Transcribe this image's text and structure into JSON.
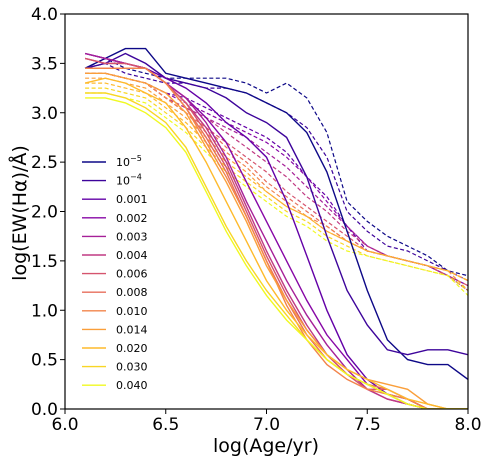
{
  "chart_data": {
    "type": "line",
    "xlabel": "log(Age/yr)",
    "ylabel": "log(EW(Hα)/Å)",
    "xlim": [
      6.0,
      8.0
    ],
    "ylim": [
      0.0,
      4.0
    ],
    "xticks": [
      "6.0",
      "6.5",
      "7.0",
      "7.5",
      "8.0"
    ],
    "yticks": [
      "0.0",
      "0.5",
      "1.0",
      "1.5",
      "2.0",
      "2.5",
      "3.0",
      "3.5",
      "4.0"
    ],
    "grid": false,
    "legend_position": "center-left",
    "x": [
      6.1,
      6.2,
      6.3,
      6.4,
      6.5,
      6.6,
      6.7,
      6.8,
      6.9,
      7.0,
      7.1,
      7.2,
      7.3,
      7.4,
      7.5,
      7.6,
      7.7,
      7.8,
      7.9,
      8.0
    ],
    "line_styles": {
      "solid": "solid",
      "dashed": "dashed"
    },
    "series": [
      {
        "name": "10",
        "name_sup": "−5",
        "color": "#0d0887",
        "solid": [
          3.45,
          3.55,
          3.65,
          3.65,
          3.4,
          3.35,
          3.3,
          3.25,
          3.2,
          3.1,
          3.0,
          2.8,
          2.4,
          1.8,
          1.2,
          0.7,
          0.5,
          0.45,
          0.45,
          0.3
        ],
        "dashed": [
          3.45,
          3.55,
          3.45,
          3.4,
          3.35,
          3.35,
          3.35,
          3.35,
          3.3,
          3.2,
          3.3,
          3.15,
          2.8,
          2.1,
          1.9,
          1.75,
          1.65,
          1.55,
          1.4,
          1.35
        ]
      },
      {
        "name": "10",
        "name_sup": "−4",
        "color": "#3d049b",
        "solid": [
          3.45,
          3.5,
          3.6,
          3.5,
          3.35,
          3.3,
          3.25,
          3.15,
          3.0,
          2.9,
          2.75,
          2.35,
          1.75,
          1.2,
          0.85,
          0.6,
          0.55,
          0.6,
          0.6,
          0.55
        ],
        "dashed": [
          3.45,
          3.5,
          3.4,
          3.35,
          3.3,
          3.3,
          3.25,
          3.25,
          3.2,
          3.1,
          3.0,
          2.85,
          2.55,
          2.0,
          1.8,
          1.65,
          1.6,
          1.5,
          1.4,
          1.3
        ]
      },
      {
        "name": "0.001",
        "color": "#6300a7",
        "solid": [
          3.6,
          3.55,
          3.5,
          3.45,
          3.35,
          3.25,
          3.1,
          2.9,
          2.75,
          2.55,
          2.1,
          1.55,
          1.0,
          0.55,
          0.3,
          0.15,
          0.1,
          0.0,
          0.0,
          0.0
        ],
        "dashed": [
          3.4,
          3.4,
          3.35,
          3.3,
          3.2,
          3.15,
          3.05,
          2.95,
          2.85,
          2.75,
          2.6,
          2.35,
          2.15,
          1.85,
          1.6,
          1.55,
          1.5,
          1.45,
          1.35,
          1.2
        ]
      },
      {
        "name": "0.002",
        "color": "#8707a6",
        "solid": [
          3.6,
          3.55,
          3.5,
          3.45,
          3.3,
          3.15,
          2.95,
          2.7,
          2.3,
          1.9,
          1.5,
          1.1,
          0.75,
          0.5,
          0.25,
          0.15,
          0.05,
          0.0,
          0.0,
          0.0
        ],
        "dashed": [
          3.4,
          3.4,
          3.35,
          3.3,
          3.2,
          3.1,
          3.0,
          2.9,
          2.8,
          2.7,
          2.55,
          2.35,
          2.1,
          1.85,
          1.65,
          1.55,
          1.5,
          1.45,
          1.35,
          1.25
        ]
      },
      {
        "name": "0.003",
        "color": "#a62098",
        "solid": [
          3.6,
          3.55,
          3.5,
          3.45,
          3.3,
          3.15,
          2.9,
          2.55,
          2.1,
          1.7,
          1.3,
          0.95,
          0.65,
          0.4,
          0.2,
          0.1,
          0.05,
          0.0,
          0.0,
          0.0
        ],
        "dashed": [
          3.4,
          3.4,
          3.35,
          3.3,
          3.15,
          3.05,
          2.95,
          2.85,
          2.75,
          2.6,
          2.45,
          2.25,
          2.05,
          1.85,
          1.65,
          1.55,
          1.5,
          1.45,
          1.35,
          1.2
        ]
      },
      {
        "name": "0.004",
        "color": "#c03a83",
        "solid": [
          3.55,
          3.5,
          3.5,
          3.45,
          3.3,
          3.1,
          2.85,
          2.5,
          2.05,
          1.6,
          1.2,
          0.85,
          0.55,
          0.35,
          0.2,
          0.1,
          0.05,
          0.0,
          0.0,
          0.0
        ],
        "dashed": [
          3.4,
          3.4,
          3.35,
          3.3,
          3.15,
          3.05,
          2.95,
          2.8,
          2.65,
          2.5,
          2.35,
          2.15,
          2.0,
          1.8,
          1.65,
          1.55,
          1.5,
          1.45,
          1.35,
          1.2
        ]
      },
      {
        "name": "0.006",
        "color": "#d5546e",
        "solid": [
          3.55,
          3.5,
          3.5,
          3.45,
          3.3,
          3.1,
          2.8,
          2.45,
          2.0,
          1.55,
          1.15,
          0.8,
          0.55,
          0.35,
          0.2,
          0.2,
          0.1,
          0.0,
          0.0,
          0.0
        ],
        "dashed": [
          3.4,
          3.4,
          3.35,
          3.3,
          3.15,
          3.0,
          2.85,
          2.7,
          2.55,
          2.4,
          2.2,
          2.05,
          1.9,
          1.75,
          1.6,
          1.55,
          1.5,
          1.45,
          1.35,
          1.25
        ]
      },
      {
        "name": "0.008",
        "color": "#e76e5b",
        "solid": [
          3.45,
          3.45,
          3.45,
          3.45,
          3.3,
          3.05,
          2.75,
          2.4,
          1.95,
          1.5,
          1.1,
          0.75,
          0.5,
          0.35,
          0.25,
          0.2,
          0.1,
          0.0,
          0.0,
          0.0
        ],
        "dashed": [
          3.4,
          3.4,
          3.35,
          3.3,
          3.15,
          3.0,
          2.85,
          2.65,
          2.5,
          2.3,
          2.15,
          2.0,
          1.85,
          1.7,
          1.6,
          1.55,
          1.5,
          1.45,
          1.4,
          1.3
        ]
      },
      {
        "name": "0.010",
        "color": "#f2844b",
        "solid": [
          3.45,
          3.45,
          3.45,
          3.45,
          3.3,
          3.05,
          2.7,
          2.35,
          1.95,
          1.5,
          1.05,
          0.7,
          0.45,
          0.3,
          0.2,
          0.15,
          0.1,
          0.0,
          0.0,
          0.0
        ],
        "dashed": [
          3.4,
          3.4,
          3.35,
          3.3,
          3.15,
          3.0,
          2.8,
          2.6,
          2.45,
          2.25,
          2.1,
          1.95,
          1.85,
          1.7,
          1.6,
          1.55,
          1.5,
          1.45,
          1.4,
          1.3
        ]
      },
      {
        "name": "0.014",
        "color": "#fa9f3a",
        "solid": [
          3.4,
          3.4,
          3.35,
          3.3,
          3.2,
          3.0,
          2.65,
          2.3,
          1.9,
          1.45,
          1.1,
          0.8,
          0.55,
          0.4,
          0.3,
          0.25,
          0.2,
          0.05,
          0.0,
          0.0
        ],
        "dashed": [
          3.35,
          3.35,
          3.3,
          3.25,
          3.1,
          2.95,
          2.75,
          2.55,
          2.4,
          2.2,
          2.05,
          1.95,
          1.8,
          1.7,
          1.6,
          1.55,
          1.5,
          1.45,
          1.4,
          1.2
        ]
      },
      {
        "name": "0.020",
        "color": "#feba2c",
        "solid": [
          3.3,
          3.35,
          3.3,
          3.2,
          3.1,
          2.85,
          2.5,
          2.1,
          1.7,
          1.3,
          1.0,
          0.75,
          0.55,
          0.4,
          0.3,
          0.2,
          0.1,
          0.05,
          0.0,
          0.0
        ],
        "dashed": [
          3.3,
          3.3,
          3.25,
          3.2,
          3.05,
          2.9,
          2.7,
          2.5,
          2.35,
          2.2,
          2.05,
          1.95,
          1.8,
          1.7,
          1.6,
          1.55,
          1.5,
          1.45,
          1.4,
          1.3
        ]
      },
      {
        "name": "0.030",
        "color": "#f8d625",
        "solid": [
          3.2,
          3.2,
          3.15,
          3.05,
          2.9,
          2.65,
          2.25,
          1.85,
          1.5,
          1.2,
          0.95,
          0.7,
          0.5,
          0.35,
          0.25,
          0.15,
          0.05,
          0.0,
          0.0,
          0.0
        ],
        "dashed": [
          3.25,
          3.25,
          3.2,
          3.15,
          3.0,
          2.85,
          2.65,
          2.45,
          2.3,
          2.15,
          2.0,
          1.9,
          1.75,
          1.65,
          1.55,
          1.5,
          1.45,
          1.4,
          1.35,
          1.2
        ]
      },
      {
        "name": "0.040",
        "color": "#f0f921",
        "solid": [
          3.15,
          3.15,
          3.1,
          3.0,
          2.85,
          2.6,
          2.2,
          1.8,
          1.45,
          1.15,
          0.9,
          0.7,
          0.5,
          0.35,
          0.25,
          0.15,
          0.05,
          0.0,
          0.0,
          0.0
        ],
        "dashed": [
          3.2,
          3.2,
          3.15,
          3.1,
          2.95,
          2.8,
          2.6,
          2.4,
          2.25,
          2.1,
          1.95,
          1.85,
          1.7,
          1.6,
          1.55,
          1.5,
          1.45,
          1.4,
          1.35,
          1.15
        ]
      }
    ]
  }
}
